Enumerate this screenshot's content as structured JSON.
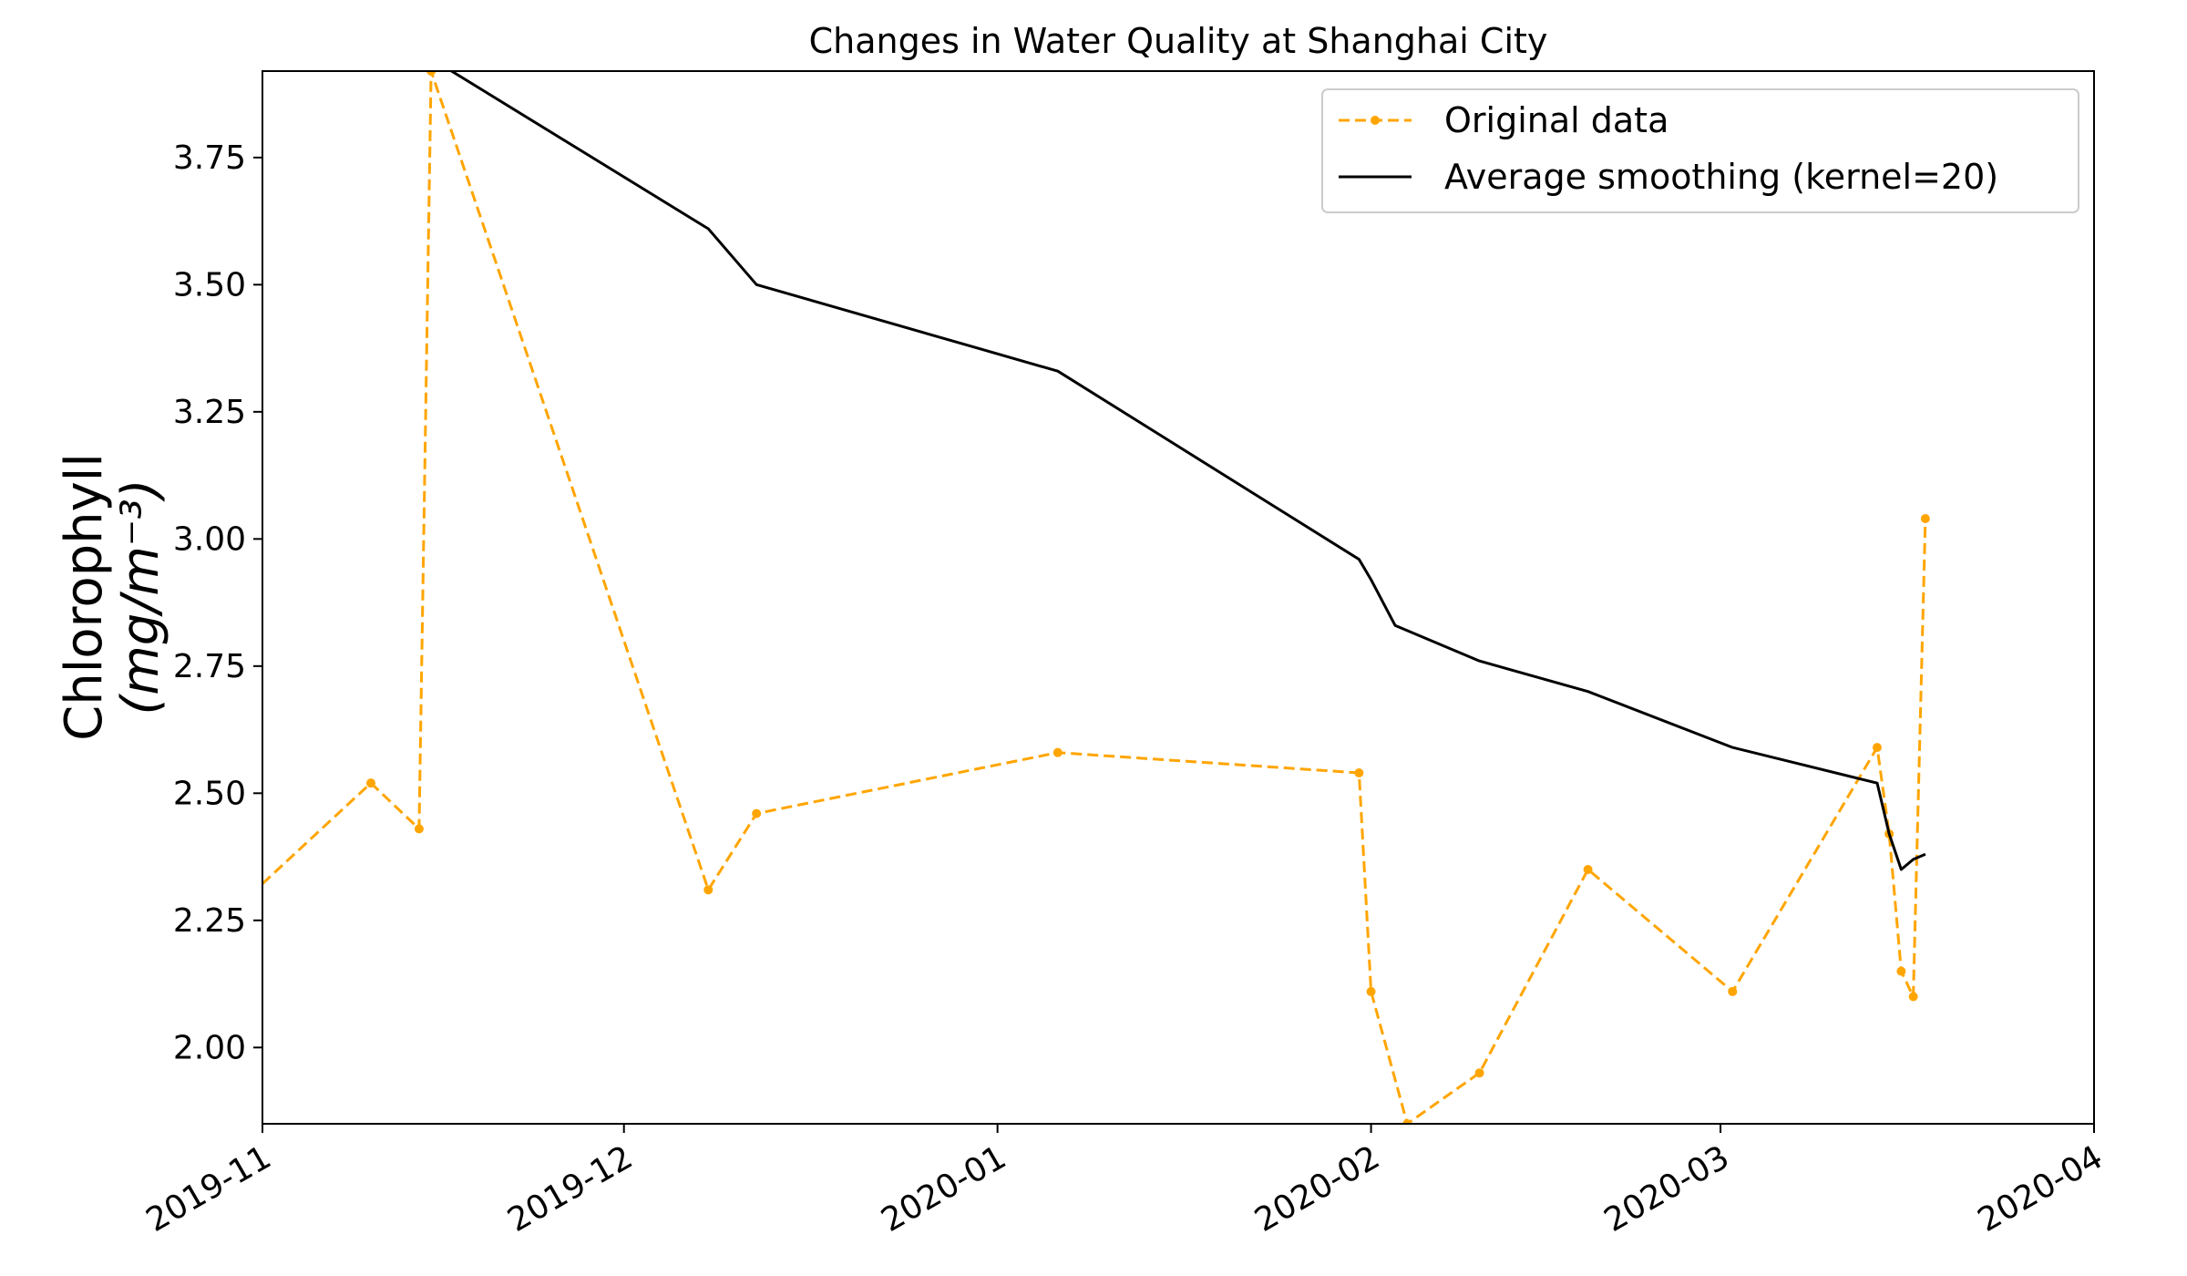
{
  "chart_data": {
    "type": "line",
    "title": "Changes in Water Quality at Shanghai City",
    "ylabel_line1": "Chlorophyll",
    "ylabel_line2": "(mg/m⁻³)",
    "xlabel": "",
    "x_range": [
      "2019-11-01",
      "2020-04-01"
    ],
    "ylim": [
      1.85,
      3.92
    ],
    "yticks": [
      2.0,
      2.25,
      2.5,
      2.75,
      3.0,
      3.25,
      3.5,
      3.75
    ],
    "ytick_labels": [
      "2.00",
      "2.25",
      "2.50",
      "2.75",
      "3.00",
      "3.25",
      "3.50",
      "3.75"
    ],
    "xticks": [
      "2019-11-01",
      "2019-12-01",
      "2020-01-01",
      "2020-02-01",
      "2020-03-01",
      "2020-04-01"
    ],
    "xtick_labels": [
      "2019-11",
      "2019-12",
      "2020-01",
      "2020-02",
      "2020-03",
      "2020-04"
    ],
    "grid": false,
    "legend_position": "top-right",
    "series": [
      {
        "name": "Original data",
        "color": "#FFA500",
        "style": "dashed",
        "marker": "dot",
        "x": [
          "2019-10-31",
          "2019-11-10",
          "2019-11-14",
          "2019-11-15",
          "2019-12-08",
          "2019-12-12",
          "2020-01-06",
          "2020-01-31",
          "2020-02-01",
          "2020-02-04",
          "2020-02-10",
          "2020-02-19",
          "2020-03-02",
          "2020-03-14",
          "2020-03-15",
          "2020-03-16",
          "2020-03-17",
          "2020-03-18"
        ],
        "y": [
          2.3,
          2.52,
          2.43,
          3.92,
          2.31,
          2.46,
          2.58,
          2.54,
          2.11,
          1.85,
          1.95,
          2.35,
          2.11,
          2.59,
          2.42,
          2.15,
          2.1,
          3.04
        ]
      },
      {
        "name": "Average smoothing (kernel=20)",
        "color": "#000000",
        "style": "solid",
        "marker": "none",
        "x": [
          "2019-11-16",
          "2019-12-08",
          "2019-12-12",
          "2020-01-06",
          "2020-01-31",
          "2020-02-01",
          "2020-02-03",
          "2020-02-10",
          "2020-02-19",
          "2020-03-02",
          "2020-03-14",
          "2020-03-15",
          "2020-03-16",
          "2020-03-17",
          "2020-03-18"
        ],
        "y": [
          3.93,
          3.61,
          3.5,
          3.33,
          2.96,
          2.92,
          2.83,
          2.76,
          2.7,
          2.59,
          2.52,
          2.42,
          2.35,
          2.37,
          2.38
        ]
      }
    ]
  }
}
